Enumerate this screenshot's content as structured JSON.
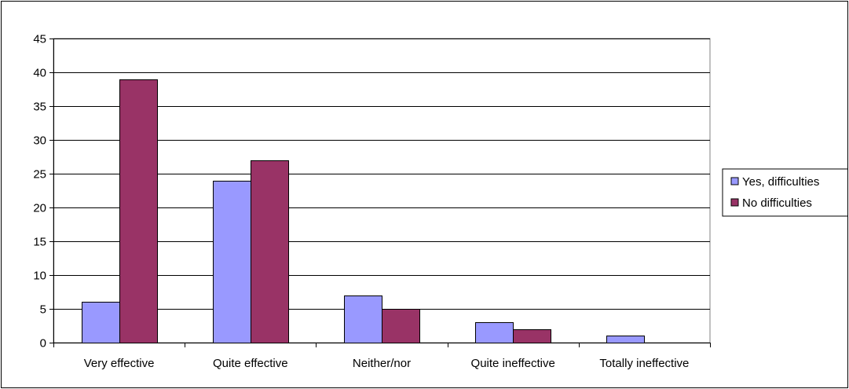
{
  "chart_data": {
    "type": "bar",
    "title": "",
    "xlabel": "",
    "ylabel": "",
    "ylim": [
      0,
      45
    ],
    "yticks": [
      0,
      5,
      10,
      15,
      20,
      25,
      30,
      35,
      40,
      45
    ],
    "ytick_labels": [
      "0",
      "5",
      "10",
      "15",
      "20",
      "25",
      "30",
      "35",
      "40",
      "45"
    ],
    "grid": true,
    "legend_position": "right",
    "categories": [
      "Very effective",
      "Quite effective",
      "Neither/nor",
      "Quite ineffective",
      "Totally ineffective"
    ],
    "series": [
      {
        "name": "Yes, difficulties",
        "values": [
          6,
          24,
          7,
          3,
          1
        ],
        "color": "#9999FF"
      },
      {
        "name": "No difficulties",
        "values": [
          39,
          27,
          5,
          2,
          0
        ],
        "color": "#993366"
      }
    ]
  }
}
